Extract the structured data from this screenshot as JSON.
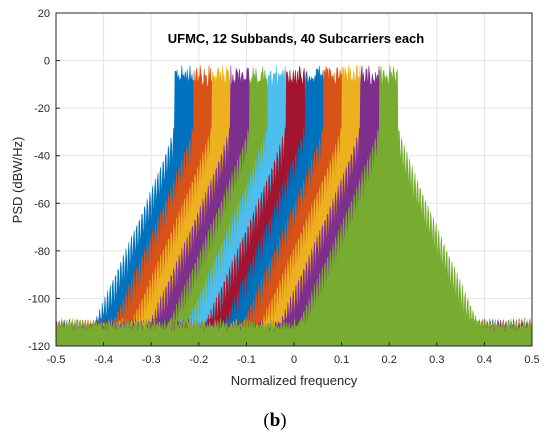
{
  "chart_data": {
    "type": "area",
    "title": "UFMC, 12 Subbands, 40 Subcarriers each",
    "xlabel": "Normalized frequency",
    "ylabel": "PSD (dBW/Hz)",
    "xlim": [
      -0.5,
      0.5
    ],
    "ylim": [
      -120,
      20
    ],
    "x_ticks": [
      -0.5,
      -0.4,
      -0.3,
      -0.2,
      -0.1,
      0,
      0.1,
      0.2,
      0.3,
      0.4,
      0.5
    ],
    "x_tick_labels": [
      "-0.5",
      "-0.4",
      "-0.3",
      "-0.2",
      "-0.1",
      "0",
      "0.1",
      "0.2",
      "0.3",
      "0.4",
      "0.5"
    ],
    "y_ticks": [
      20,
      0,
      -20,
      -40,
      -60,
      -80,
      -100,
      -120
    ],
    "y_tick_labels": [
      "20",
      "0",
      "-20",
      "-40",
      "-60",
      "-80",
      "-100",
      "-120"
    ],
    "grid": true,
    "legend": "none",
    "subband_count": 12,
    "subband_width": 0.039,
    "subband_centers": [
      -0.2305,
      -0.1915,
      -0.1525,
      -0.1135,
      -0.0745,
      -0.0355,
      0.0035,
      0.0425,
      0.0815,
      0.1205,
      0.1595,
      0.1985
    ],
    "in_band_psd_dbw_hz": -2,
    "floor_psd_dbw_hz": -108,
    "colors": [
      "#0072BD",
      "#D95319",
      "#EDB120",
      "#7E2F8E",
      "#77AC30",
      "#4DBEEE",
      "#A2142F",
      "#0072BD",
      "#D95319",
      "#EDB120",
      "#7E2F8E",
      "#77AC30"
    ]
  },
  "caption": "(b)"
}
